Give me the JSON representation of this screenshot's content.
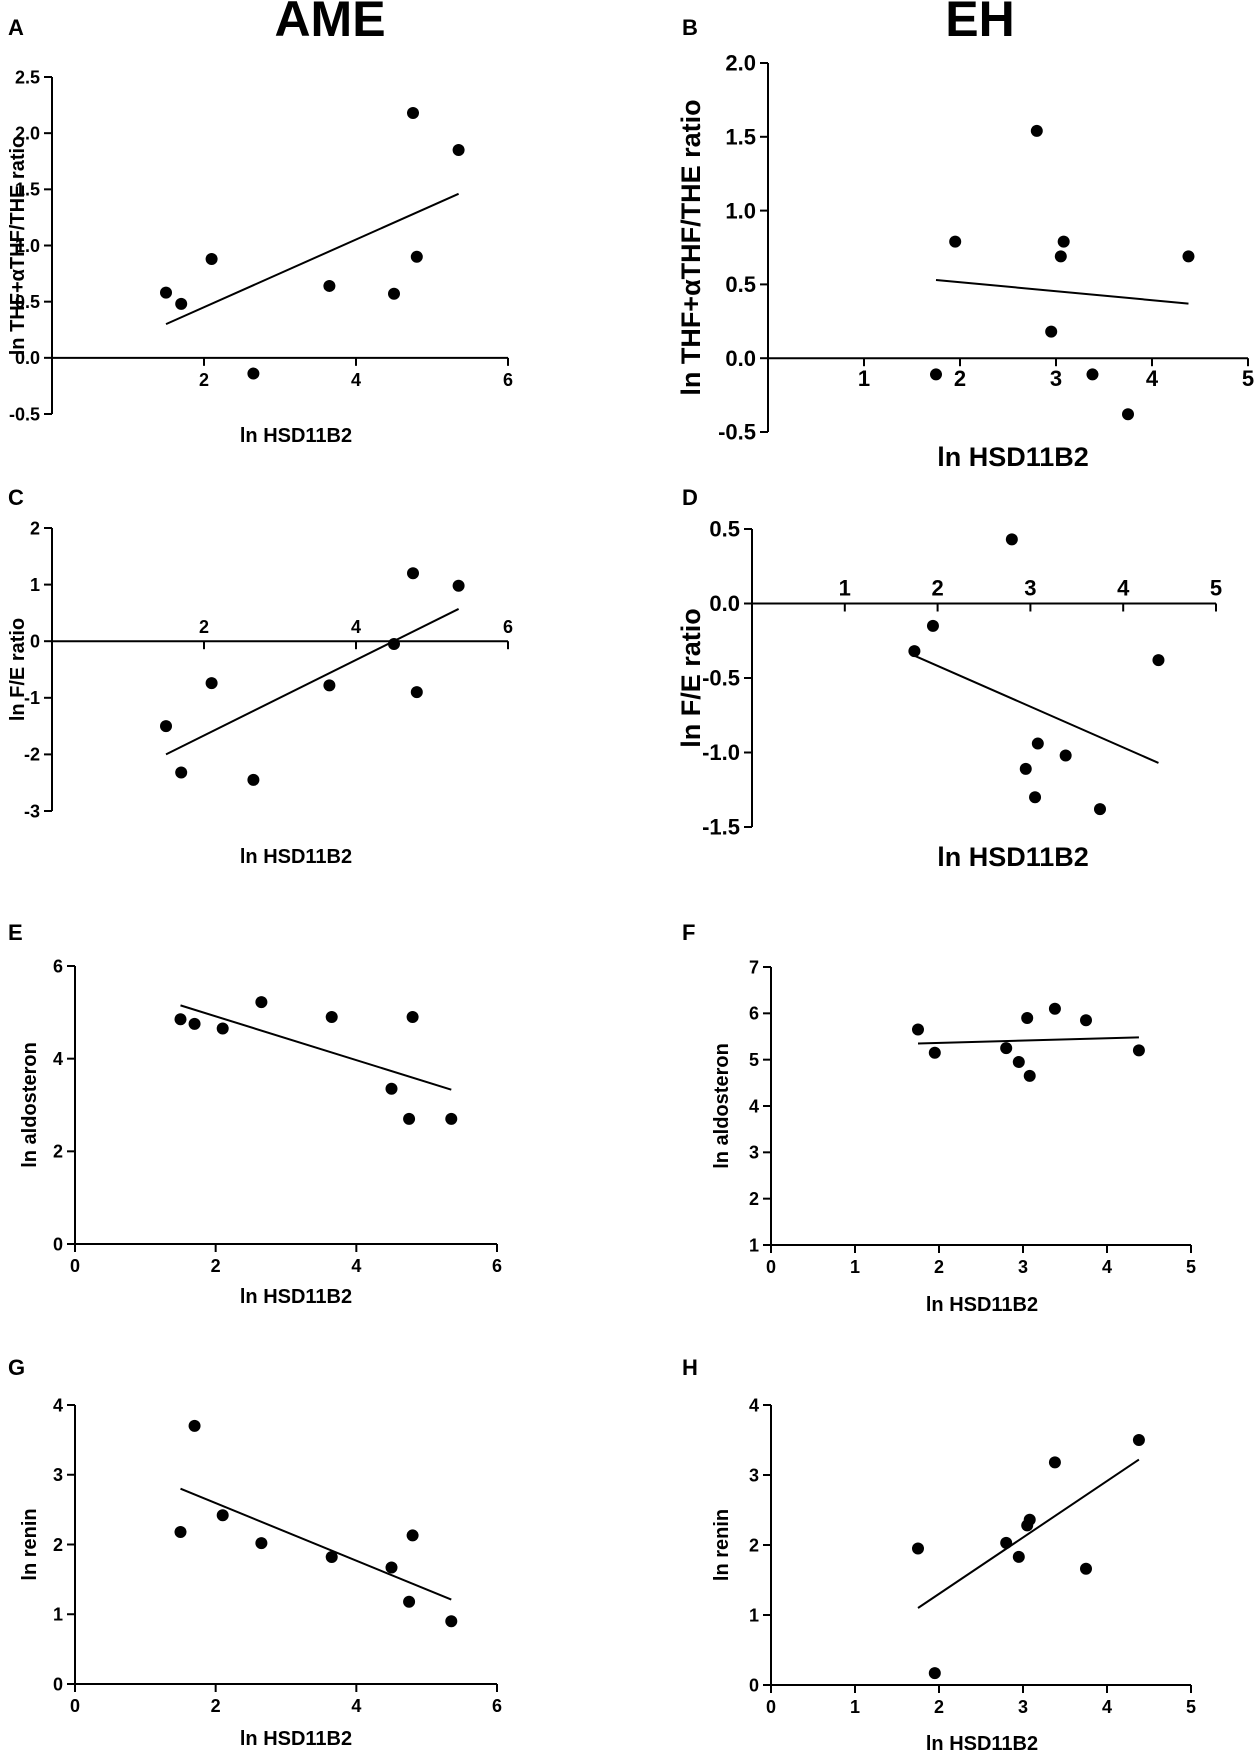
{
  "colors": {
    "ink": "#000000",
    "background": "#ffffff"
  },
  "column_titles": {
    "left": "AME",
    "right": "EH"
  },
  "chart_data": [
    {
      "panel": "A",
      "type": "scatter",
      "title": "",
      "xlabel": "ln HSD11B2",
      "ylabel": "ln THF+αTHF/THE ratio",
      "xlim": [
        0,
        6
      ],
      "ylim": [
        -0.5,
        2.5
      ],
      "xticks": [
        2,
        4,
        6
      ],
      "yticks": [
        -0.5,
        0.0,
        0.5,
        1.0,
        1.5,
        2.0,
        2.5
      ],
      "yticklabels": [
        "-0.5",
        "0.0",
        "0.5",
        "1.0",
        "1.5",
        "2.0",
        "2.5"
      ],
      "x": [
        1.5,
        1.7,
        2.1,
        2.65,
        3.65,
        4.5,
        4.75,
        4.8,
        5.35
      ],
      "y": [
        0.58,
        0.48,
        0.88,
        -0.14,
        0.64,
        0.57,
        2.18,
        0.9,
        1.85
      ],
      "fit": {
        "x": [
          1.5,
          5.35
        ],
        "y": [
          0.3,
          1.46
        ]
      }
    },
    {
      "panel": "B",
      "type": "scatter",
      "title": "",
      "xlabel": "ln HSD11B2",
      "ylabel": "ln THF+αTHF/THE ratio",
      "xlim": [
        0,
        5
      ],
      "ylim": [
        -0.5,
        2.0
      ],
      "xticks": [
        1,
        2,
        3,
        4,
        5
      ],
      "yticks": [
        -0.5,
        0.0,
        0.5,
        1.0,
        1.5,
        2.0
      ],
      "yticklabels": [
        "-0.5",
        "0.0",
        "0.5",
        "1.0",
        "1.5",
        "2.0"
      ],
      "x": [
        1.75,
        1.95,
        2.8,
        2.95,
        3.05,
        3.08,
        3.38,
        3.75,
        4.38
      ],
      "y": [
        -0.11,
        0.79,
        1.54,
        0.18,
        0.69,
        0.79,
        -0.11,
        -0.38,
        0.69
      ],
      "fit": {
        "x": [
          1.75,
          4.38
        ],
        "y": [
          0.53,
          0.37
        ]
      }
    },
    {
      "panel": "C",
      "type": "scatter",
      "title": "",
      "xlabel": "ln HSD11B2",
      "ylabel": "ln F/E ratio",
      "xlim": [
        0,
        6
      ],
      "ylim": [
        -3,
        2
      ],
      "xticks": [
        2,
        4,
        6
      ],
      "yticks": [
        -3,
        -2,
        -1,
        0,
        1,
        2
      ],
      "yticklabels": [
        "-3",
        "-2",
        "-1",
        "0",
        "1",
        "2"
      ],
      "x": [
        1.5,
        1.7,
        2.1,
        2.65,
        3.65,
        4.5,
        4.75,
        4.8,
        5.35
      ],
      "y": [
        -1.5,
        -2.32,
        -0.74,
        -2.45,
        -0.78,
        -0.05,
        1.2,
        -0.9,
        0.98
      ],
      "fit": {
        "x": [
          1.5,
          5.35
        ],
        "y": [
          -2.0,
          0.57
        ]
      }
    },
    {
      "panel": "D",
      "type": "scatter",
      "title": "",
      "xlabel": "ln HSD11B2",
      "ylabel": "ln F/E ratio",
      "xlim": [
        0,
        5
      ],
      "ylim": [
        -1.5,
        0.5
      ],
      "xticks": [
        1,
        2,
        3,
        4,
        5
      ],
      "yticks": [
        -1.5,
        -1.0,
        -0.5,
        0.0,
        0.5
      ],
      "yticklabels": [
        "-1.5",
        "-1.0",
        "-0.5",
        "0.0",
        "0.5"
      ],
      "x": [
        1.75,
        1.95,
        2.8,
        2.95,
        3.05,
        3.08,
        3.38,
        3.75,
        4.38
      ],
      "y": [
        -0.32,
        -0.15,
        0.43,
        -1.11,
        -1.3,
        -0.94,
        -1.02,
        -1.38,
        -0.38
      ],
      "fit": {
        "x": [
          1.75,
          4.38
        ],
        "y": [
          -0.35,
          -1.07
        ]
      }
    },
    {
      "panel": "E",
      "type": "scatter",
      "title": "",
      "xlabel": "ln HSD11B2",
      "ylabel": "ln aldosteron",
      "xlim": [
        0,
        6
      ],
      "ylim": [
        0,
        6
      ],
      "xticks": [
        0,
        2,
        4,
        6
      ],
      "yticks": [
        0,
        2,
        4,
        6
      ],
      "yticklabels": [
        "0",
        "2",
        "4",
        "6"
      ],
      "x": [
        1.5,
        1.7,
        2.1,
        2.65,
        3.65,
        4.5,
        4.75,
        4.8,
        5.35
      ],
      "y": [
        4.85,
        4.75,
        4.65,
        5.22,
        4.9,
        3.35,
        2.7,
        4.9,
        2.7
      ],
      "fit": {
        "x": [
          1.5,
          5.35
        ],
        "y": [
          5.15,
          3.33
        ]
      }
    },
    {
      "panel": "F",
      "type": "scatter",
      "title": "",
      "xlabel": "ln HSD11B2",
      "ylabel": "ln aldosteron",
      "xlim": [
        0,
        5
      ],
      "ylim": [
        1,
        7
      ],
      "xticks": [
        0,
        1,
        2,
        3,
        4,
        5
      ],
      "yticks": [
        1,
        2,
        3,
        4,
        5,
        6,
        7
      ],
      "yticklabels": [
        "1",
        "2",
        "3",
        "4",
        "5",
        "6",
        "7"
      ],
      "x": [
        1.75,
        1.95,
        2.8,
        2.95,
        3.05,
        3.08,
        3.38,
        3.75,
        4.38
      ],
      "y": [
        5.65,
        5.15,
        5.25,
        4.95,
        5.9,
        4.65,
        6.1,
        5.85,
        5.2
      ],
      "fit": {
        "x": [
          1.75,
          4.38
        ],
        "y": [
          5.35,
          5.48
        ]
      }
    },
    {
      "panel": "G",
      "type": "scatter",
      "title": "",
      "xlabel": "ln HSD11B2",
      "ylabel": "ln renin",
      "xlim": [
        0,
        6
      ],
      "ylim": [
        0,
        4
      ],
      "xticks": [
        0,
        2,
        4,
        6
      ],
      "yticks": [
        0,
        1,
        2,
        3,
        4
      ],
      "yticklabels": [
        "0",
        "1",
        "2",
        "3",
        "4"
      ],
      "x": [
        1.5,
        1.7,
        2.1,
        2.65,
        3.65,
        4.5,
        4.75,
        4.8,
        5.35
      ],
      "y": [
        2.18,
        3.7,
        2.42,
        2.02,
        1.82,
        1.67,
        1.18,
        2.13,
        0.9
      ],
      "fit": {
        "x": [
          1.5,
          5.35
        ],
        "y": [
          2.8,
          1.21
        ]
      }
    },
    {
      "panel": "H",
      "type": "scatter",
      "title": "",
      "xlabel": "ln HSD11B2",
      "ylabel": "ln renin",
      "xlim": [
        0,
        5
      ],
      "ylim": [
        0,
        4
      ],
      "xticks": [
        0,
        1,
        2,
        3,
        4,
        5
      ],
      "yticks": [
        0,
        1,
        2,
        3,
        4
      ],
      "yticklabels": [
        "0",
        "1",
        "2",
        "3",
        "4"
      ],
      "x": [
        1.75,
        1.95,
        2.8,
        2.95,
        3.05,
        3.08,
        3.38,
        3.75,
        4.38
      ],
      "y": [
        1.95,
        0.17,
        2.03,
        1.83,
        2.28,
        2.36,
        3.18,
        1.66,
        3.5
      ],
      "fit": {
        "x": [
          1.75,
          4.38
        ],
        "y": [
          1.1,
          3.22
        ]
      }
    }
  ]
}
